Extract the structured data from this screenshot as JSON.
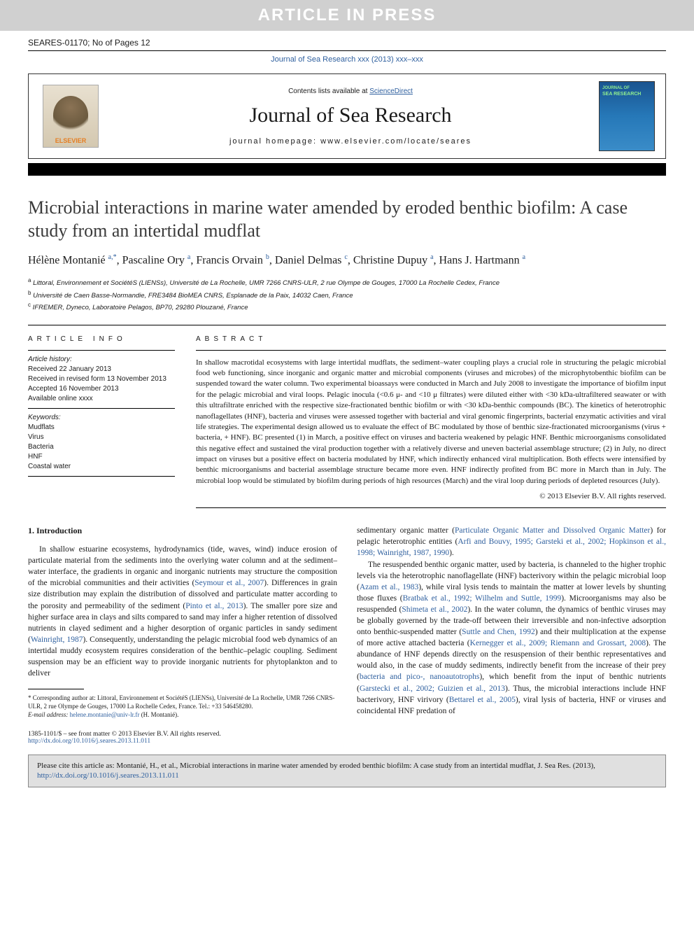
{
  "banner": "ARTICLE IN PRESS",
  "article_id": "SEARES-01170; No of Pages 12",
  "journal_ref": "Journal of Sea Research xxx (2013) xxx–xxx",
  "header": {
    "contents_prefix": "Contents lists available at ",
    "contents_link": "ScienceDirect",
    "journal_title": "Journal of Sea Research",
    "homepage_label": "journal homepage: www.elsevier.com/locate/seares",
    "publisher": "ELSEVIER"
  },
  "title": "Microbial interactions in marine water amended by eroded benthic biofilm: A case study from an intertidal mudflat",
  "authors_html": "Hélène Montanié <sup>a,*</sup>, Pascaline Ory <sup>a</sup>, Francis Orvain <sup>b</sup>, Daniel Delmas <sup>c</sup>, Christine Dupuy <sup>a</sup>, Hans J. Hartmann <sup>a</sup>",
  "affiliations": [
    {
      "sup": "a",
      "text": "Littoral, Environnement et SociétéS (LIENSs), Université de La Rochelle, UMR 7266 CNRS-ULR, 2 rue Olympe de Gouges, 17000 La Rochelle Cedex, France"
    },
    {
      "sup": "b",
      "text": "Université de Caen Basse-Normandie, FRE3484 BioMEA CNRS, Esplanade de la Paix, 14032 Caen, France"
    },
    {
      "sup": "c",
      "text": "IFREMER, Dyneco, Laboratoire Pelagos, BP70, 29280 Plouzané, France"
    }
  ],
  "article_info": {
    "heading": "article info",
    "history_label": "Article history:",
    "history": [
      "Received 22 January 2013",
      "Received in revised form 13 November 2013",
      "Accepted 16 November 2013",
      "Available online xxxx"
    ],
    "keywords_label": "Keywords:",
    "keywords": [
      "Mudflats",
      "Virus",
      "Bacteria",
      "HNF",
      "Coastal water"
    ]
  },
  "abstract": {
    "heading": "abstract",
    "text": "In shallow macrotidal ecosystems with large intertidal mudflats, the sediment–water coupling plays a crucial role in structuring the pelagic microbial food web functioning, since inorganic and organic matter and microbial components (viruses and microbes) of the microphytobenthic biofilm can be suspended toward the water column. Two experimental bioassays were conducted in March and July 2008 to investigate the importance of biofilm input for the pelagic microbial and viral loops. Pelagic inocula (<0.6 μ- and <10 μ filtrates) were diluted either with <30 kDa-ultrafiltered seawater or with this ultrafiltrate enriched with the respective size-fractionated benthic biofilm or with <30 kDa-benthic compounds (BC). The kinetics of heterotrophic nanoflagellates (HNF), bacteria and viruses were assessed together with bacterial and viral genomic fingerprints, bacterial enzymatic activities and viral life strategies. The experimental design allowed us to evaluate the effect of BC modulated by those of benthic size-fractionated microorganisms (virus + bacteria, + HNF). BC presented (1) in March, a positive effect on viruses and bacteria weakened by pelagic HNF. Benthic microorganisms consolidated this negative effect and sustained the viral production together with a relatively diverse and uneven bacterial assemblage structure; (2) in July, no direct impact on viruses but a positive effect on bacteria modulated by HNF, which indirectly enhanced viral multiplication. Both effects were intensified by benthic microorganisms and bacterial assemblage structure became more even. HNF indirectly profited from BC more in March than in July. The microbial loop would be stimulated by biofilm during periods of high resources (March) and the viral loop during periods of depleted resources (July).",
    "copyright": "© 2013 Elsevier B.V. All rights reserved."
  },
  "body": {
    "section_heading": "1. Introduction",
    "col1_p1": "In shallow estuarine ecosystems, hydrodynamics (tide, waves, wind) induce erosion of particulate material from the sediments into the overlying water column and at the sediment–water interface, the gradients in organic and inorganic nutrients may structure the composition of the microbial communities and their activities (Seymour et al., 2007). Differences in grain size distribution may explain the distribution of dissolved and particulate matter according to the porosity and permeability of the sediment (Pinto et al., 2013). The smaller pore size and higher surface area in clays and silts compared to sand may infer a higher retention of dissolved nutrients in clayed sediment and a higher desorption of organic particles in sandy sediment (Wainright, 1987). Consequently, understanding the pelagic microbial food web dynamics of an intertidal muddy ecosystem requires consideration of the benthic–pelagic coupling. Sediment suspension may be an efficient way to provide inorganic nutrients for phytoplankton and to deliver",
    "col2_p1": "sedimentary organic matter (Particulate Organic Matter and Dissolved Organic Matter) for pelagic heterotrophic entities (Arfi and Bouvy, 1995; Garsteki et al., 2002; Hopkinson et al., 1998; Wainright, 1987, 1990).",
    "col2_p2": "The resuspended benthic organic matter, used by bacteria, is channeled to the higher trophic levels via the heterotrophic nanoflagellate (HNF) bacterivory within the pelagic microbial loop (Azam et al., 1983), while viral lysis tends to maintain the matter at lower levels by shunting those fluxes (Bratbak et al., 1992; Wilhelm and Suttle, 1999). Microorganisms may also be resuspended (Shimeta et al., 2002). In the water column, the dynamics of benthic viruses may be globally governed by the trade-off between their irreversible and non-infective adsorption onto benthic-suspended matter (Suttle and Chen, 1992) and their multiplication at the expense of more active attached bacteria (Kernegger et al., 2009; Riemann and Grossart, 2008). The abundance of HNF depends directly on the resuspension of their benthic representatives and would also, in the case of muddy sediments, indirectly benefit from the increase of their prey (bacteria and pico-, nanoautotrophs), which benefit from the input of benthic nutrients (Garstecki et al., 2002; Guizien et al., 2013). Thus, the microbial interactions include HNF bacterivory, HNF virivory (Bettarel et al., 2005), viral lysis of bacteria, HNF or viruses and coincidental HNF predation of"
  },
  "footnotes": {
    "corr": "* Corresponding author at: Littoral, Environnement et SociétéS (LIENSs), Université de La Rochelle, UMR 7266 CNRS-ULR, 2 rue Olympe de Gouges, 17000 La Rochelle Cedex, France. Tel.: +33 546458280.",
    "email_label": "E-mail address: ",
    "email": "helene.montanie@univ-lr.fr",
    "email_suffix": " (H. Montanié)."
  },
  "bottom": {
    "issn": "1385-1101/$ – see front matter © 2013 Elsevier B.V. All rights reserved.",
    "doi": "http://dx.doi.org/10.1016/j.seares.2013.11.011"
  },
  "citation": {
    "text": "Please cite this article as: Montanié, H., et al., Microbial interactions in marine water amended by eroded benthic biofilm: A case study from an intertidal mudflat, J. Sea Res. (2013), ",
    "link": "http://dx.doi.org/10.1016/j.seares.2013.11.011"
  },
  "colors": {
    "banner_bg": "#d0d0d0",
    "banner_text": "#ffffff",
    "link": "#2e5f9e",
    "text": "#1a1a1a",
    "citation_bg": "#e0e0e0"
  }
}
